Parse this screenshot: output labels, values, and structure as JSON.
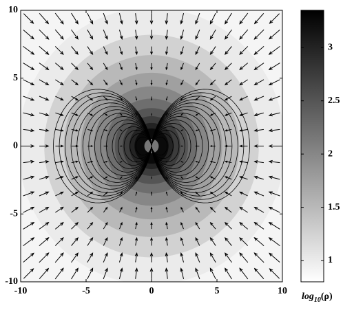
{
  "chart_data": {
    "type": "contour",
    "xlim": [
      -10,
      10
    ],
    "ylim": [
      -10,
      10
    ],
    "xticks": [
      -10,
      -5,
      0,
      5,
      10
    ],
    "yticks": [
      -10,
      -5,
      0,
      5,
      10
    ],
    "colorbar": {
      "label": {
        "base": "log",
        "sub": "10",
        "arg": "(ρ)"
      },
      "clim": [
        0.8,
        3.35
      ],
      "ticks": [
        1,
        1.5,
        2,
        2.5,
        3
      ],
      "colormap": [
        "#ffffff",
        "#000000"
      ]
    },
    "background_level": 0.9,
    "contours": [
      {
        "level": 1.0,
        "radius": 10.2
      },
      {
        "level": 1.25,
        "radius": 8.2
      },
      {
        "level": 1.5,
        "radius": 6.7
      },
      {
        "level": 1.75,
        "radius": 5.4
      },
      {
        "level": 2.0,
        "radius": 4.4
      },
      {
        "level": 2.25,
        "radius": 3.5
      },
      {
        "level": 2.5,
        "radius": 2.8
      },
      {
        "level": 2.75,
        "radius": 2.2
      },
      {
        "level": 3.0,
        "radius": 1.7
      },
      {
        "level": 3.25,
        "radius": 1.3
      }
    ]
  }
}
